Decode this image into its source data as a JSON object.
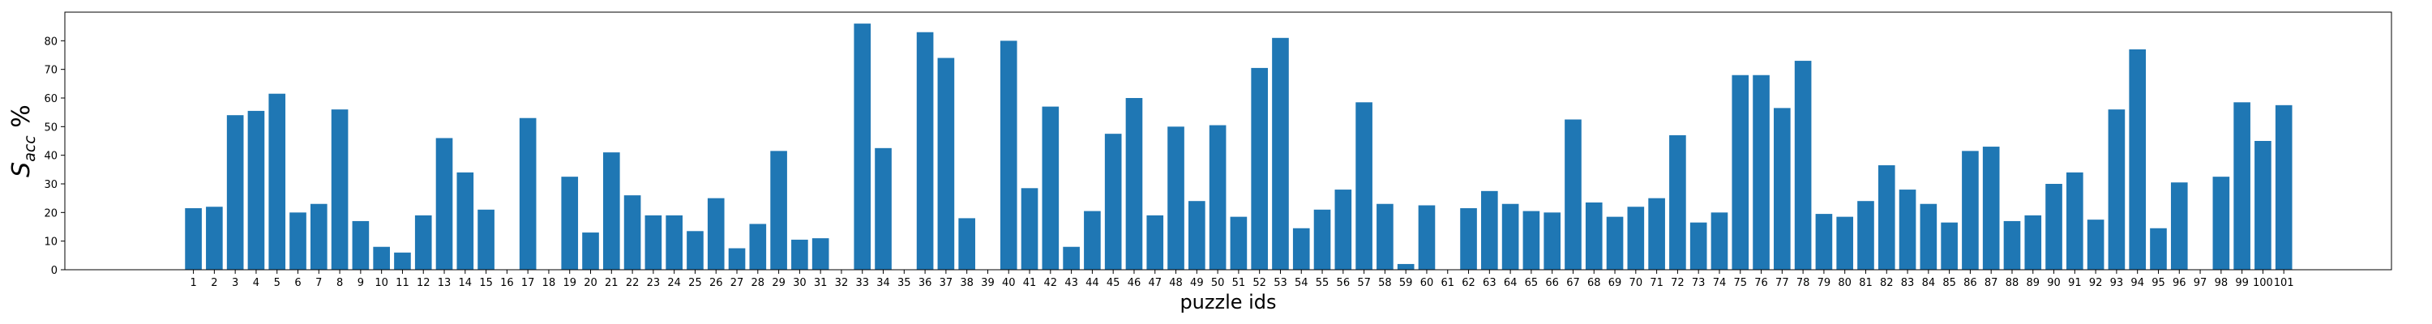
{
  "chart_data": {
    "type": "bar",
    "xlabel": "puzzle ids",
    "ylabel_main": "S",
    "ylabel_sub": "acc",
    "ylabel_suffix": " %",
    "ylim": [
      0,
      90
    ],
    "yticks": [
      0,
      10,
      20,
      30,
      40,
      50,
      60,
      70,
      80
    ],
    "bar_color": "#1f77b4",
    "categories": [
      "1",
      "2",
      "3",
      "4",
      "5",
      "6",
      "7",
      "8",
      "9",
      "10",
      "11",
      "12",
      "13",
      "14",
      "15",
      "16",
      "17",
      "18",
      "19",
      "20",
      "21",
      "22",
      "23",
      "24",
      "25",
      "26",
      "27",
      "28",
      "29",
      "30",
      "31",
      "32",
      "33",
      "34",
      "35",
      "36",
      "37",
      "38",
      "39",
      "40",
      "41",
      "42",
      "43",
      "44",
      "45",
      "46",
      "47",
      "48",
      "49",
      "50",
      "51",
      "52",
      "53",
      "54",
      "55",
      "56",
      "57",
      "58",
      "59",
      "60",
      "61",
      "62",
      "63",
      "64",
      "65",
      "66",
      "67",
      "68",
      "69",
      "70",
      "71",
      "72",
      "73",
      "74",
      "75",
      "76",
      "77",
      "78",
      "79",
      "80",
      "81",
      "82",
      "83",
      "84",
      "85",
      "86",
      "87",
      "88",
      "89",
      "90",
      "91",
      "92",
      "93",
      "94",
      "95",
      "96",
      "97",
      "98",
      "99",
      "100",
      "101"
    ],
    "values": [
      21.5,
      22,
      54,
      55.5,
      61.5,
      20,
      23,
      56,
      17,
      8,
      6,
      19,
      46,
      34,
      21,
      0,
      53,
      0,
      32.5,
      13,
      41,
      26,
      19,
      19,
      13.5,
      25,
      7.5,
      16,
      41.5,
      10.5,
      11,
      0,
      86,
      42.5,
      0,
      83,
      74,
      18,
      0,
      80,
      28.5,
      57,
      8,
      20.5,
      47.5,
      60,
      19,
      50,
      24,
      50.5,
      18.5,
      70.5,
      81,
      14.5,
      21,
      28,
      58.5,
      23,
      2,
      22.5,
      0,
      21.5,
      27.5,
      23,
      20.5,
      20,
      52.5,
      23.5,
      18.5,
      22,
      25,
      47,
      16.5,
      20,
      68,
      68,
      56.5,
      73,
      19.5,
      18.5,
      24,
      36.5,
      28,
      23,
      16.5,
      41.5,
      43,
      17,
      19,
      30,
      34,
      17.5,
      56,
      77,
      14.5,
      30.5,
      0,
      32.5,
      58.5,
      45,
      57.5
    ]
  }
}
